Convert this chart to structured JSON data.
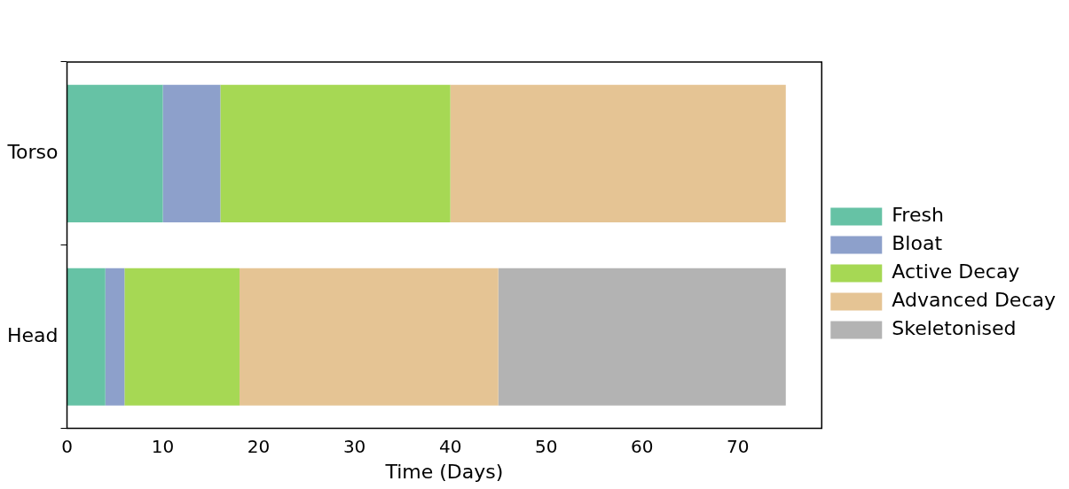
{
  "chart_data": {
    "type": "bar",
    "orientation": "horizontal",
    "stacked": true,
    "xlabel": "Time (Days)",
    "categories": [
      "Torso",
      "Head"
    ],
    "series": [
      {
        "name": "Fresh",
        "color": "#66c2a5",
        "values": [
          10,
          4
        ]
      },
      {
        "name": "Bloat",
        "color": "#8da0cb",
        "values": [
          6,
          2
        ]
      },
      {
        "name": "Active Decay",
        "color": "#a6d854",
        "values": [
          24,
          12
        ]
      },
      {
        "name": "Advanced Decay",
        "color": "#e5c494",
        "values": [
          35,
          27
        ]
      },
      {
        "name": "Skeletonised",
        "color": "#b3b3b3",
        "values": [
          null,
          30
        ]
      }
    ],
    "xlim": [
      0,
      78.75
    ],
    "xticks": [
      0,
      10,
      20,
      30,
      40,
      50,
      60,
      70
    ],
    "grid": false,
    "legend": "right"
  }
}
